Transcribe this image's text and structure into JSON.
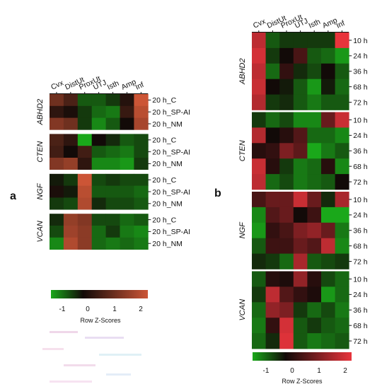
{
  "panels": [
    {
      "label": "a",
      "color_scale": {
        "title": "Row Z-Scores",
        "ticks": [
          -1,
          0,
          1,
          2
        ]
      }
    },
    {
      "label": "b",
      "color_scale": {
        "title": "Row Z-Scores",
        "ticks": [
          -1,
          0,
          1,
          2
        ]
      }
    }
  ],
  "colors": {
    "low": "#1aa81a",
    "mid": "#120a08",
    "high_a": "#cc5536",
    "high_b": "#e8343c"
  },
  "chart_data": [
    {
      "type": "heatmap",
      "columns": [
        "Cvx",
        "DistUt",
        "ProxUt",
        "UTJ",
        "Isth",
        "Amp",
        "Inf"
      ],
      "row_labels": [
        "20 h_C",
        "20 h_SP-AI",
        "20 h_NM"
      ],
      "color_range": [
        -1,
        2
      ],
      "genes": [
        {
          "name": "ABHD2",
          "values": [
            [
              1.0,
              0.6,
              -0.5,
              -0.5,
              -0.3,
              0.2,
              2.0
            ],
            [
              0.3,
              0.1,
              -0.3,
              -0.6,
              -0.7,
              0.4,
              1.8
            ],
            [
              1.2,
              1.0,
              -0.3,
              -0.8,
              -0.5,
              0.0,
              1.6
            ]
          ]
        },
        {
          "name": "CTEN",
          "values": [
            [
              0.6,
              0.3,
              -1.0,
              0.0,
              -0.2,
              -0.5,
              -0.4
            ],
            [
              0.5,
              0.0,
              0.5,
              -0.5,
              -0.6,
              -0.7,
              -0.4
            ],
            [
              1.2,
              1.4,
              0.3,
              -0.8,
              -0.8,
              -0.9,
              -0.3
            ]
          ]
        },
        {
          "name": "NGF",
          "values": [
            [
              -0.1,
              -0.3,
              2.0,
              -0.4,
              -0.3,
              -0.4,
              -0.4
            ],
            [
              0.1,
              -0.1,
              1.8,
              -0.5,
              -0.5,
              -0.5,
              -0.6
            ],
            [
              -0.3,
              -0.4,
              1.7,
              -0.2,
              -0.4,
              -0.4,
              -0.5
            ]
          ]
        },
        {
          "name": "VCAN",
          "values": [
            [
              -0.2,
              1.4,
              1.2,
              -0.4,
              -0.4,
              -0.6,
              -0.5
            ],
            [
              -0.4,
              1.5,
              1.3,
              -0.6,
              -0.3,
              -0.7,
              -0.8
            ],
            [
              -0.8,
              1.7,
              1.3,
              -0.6,
              -0.7,
              -0.6,
              -0.7
            ]
          ]
        }
      ]
    },
    {
      "type": "heatmap",
      "columns": [
        "Cvx",
        "DistUt",
        "ProxUt",
        "UTJ",
        "Isth",
        "Amp",
        "Inf"
      ],
      "row_labels": [
        "10 h",
        "24 h",
        "36 h",
        "68 h",
        "72 h"
      ],
      "color_range": [
        -1,
        2
      ],
      "genes": [
        {
          "name": "ABHD2",
          "values": [
            [
              1.6,
              -0.5,
              -0.3,
              -0.3,
              -0.3,
              -0.3,
              2.0
            ],
            [
              1.8,
              -0.3,
              0.0,
              0.5,
              -0.5,
              -0.6,
              -0.9
            ],
            [
              1.6,
              -0.6,
              0.3,
              -0.2,
              -0.4,
              0.0,
              -0.5
            ],
            [
              1.7,
              0.0,
              -0.1,
              -0.5,
              -0.9,
              -0.1,
              -0.6
            ],
            [
              1.5,
              -0.3,
              -0.2,
              -0.5,
              -0.7,
              -0.5,
              -0.5
            ]
          ]
        },
        {
          "name": "CTEN",
          "values": [
            [
              -0.3,
              -0.6,
              -0.4,
              -0.8,
              -0.8,
              0.8,
              1.7
            ],
            [
              1.5,
              0.0,
              0.2,
              0.6,
              -0.6,
              -0.6,
              -0.8
            ],
            [
              0.2,
              0.3,
              1.0,
              0.7,
              -1.0,
              -0.7,
              -0.5
            ],
            [
              1.7,
              0.2,
              -0.3,
              -0.7,
              -0.6,
              0.2,
              -0.8
            ],
            [
              1.6,
              -0.6,
              -0.4,
              -0.7,
              -0.6,
              -0.5,
              0.0
            ]
          ]
        },
        {
          "name": "NGF",
          "values": [
            [
              0.5,
              0.8,
              0.8,
              1.7,
              0.8,
              -0.2,
              1.4
            ],
            [
              -0.8,
              0.6,
              0.8,
              0.0,
              0.4,
              -1.0,
              -1.0
            ],
            [
              -0.9,
              0.3,
              0.5,
              1.0,
              1.2,
              0.8,
              -0.7
            ],
            [
              -0.5,
              0.4,
              0.4,
              0.8,
              0.6,
              1.6,
              -0.8
            ],
            [
              -0.2,
              -0.3,
              -0.6,
              1.4,
              -0.5,
              -0.4,
              -0.3
            ]
          ]
        },
        {
          "name": "VCAN",
          "values": [
            [
              -0.5,
              0.2,
              0.1,
              1.2,
              0.2,
              -0.4,
              -0.6
            ],
            [
              -0.3,
              1.6,
              0.6,
              0.3,
              0.1,
              -0.9,
              -0.6
            ],
            [
              -0.6,
              1.2,
              1.0,
              -0.3,
              -0.6,
              -0.4,
              -0.7
            ],
            [
              -0.7,
              0.3,
              1.8,
              -0.5,
              -0.3,
              -0.5,
              -0.6
            ],
            [
              -0.6,
              -0.2,
              1.9,
              -0.5,
              -0.7,
              -0.6,
              -0.5
            ]
          ]
        }
      ]
    }
  ]
}
